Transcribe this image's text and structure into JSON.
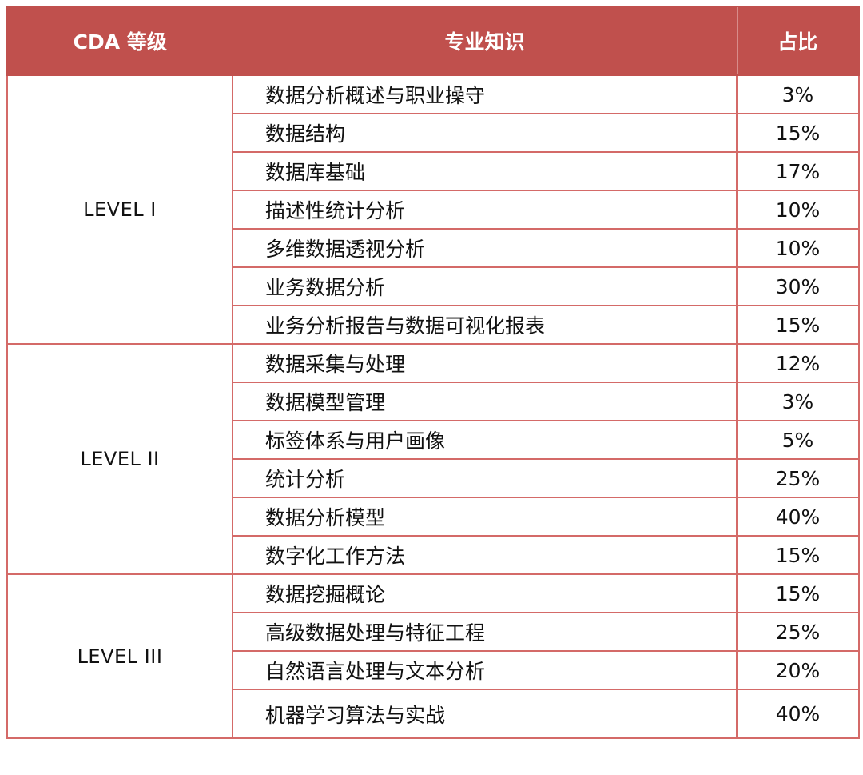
{
  "header": {
    "col_level": "CDA 等级",
    "col_knowledge": "专业知识",
    "col_ratio": "占比"
  },
  "colors": {
    "header_bg": "#c0504d",
    "border": "#d46a68",
    "header_text": "#ffffff"
  },
  "levels": [
    {
      "name": "LEVEL I",
      "rows": [
        {
          "knowledge": "数据分析概述与职业操守",
          "ratio": "3%"
        },
        {
          "knowledge": "数据结构",
          "ratio": "15%"
        },
        {
          "knowledge": "数据库基础",
          "ratio": "17%"
        },
        {
          "knowledge": "描述性统计分析",
          "ratio": "10%"
        },
        {
          "knowledge": "多维数据透视分析",
          "ratio": "10%"
        },
        {
          "knowledge": "业务数据分析",
          "ratio": "30%"
        },
        {
          "knowledge": "业务分析报告与数据可视化报表",
          "ratio": "15%"
        }
      ]
    },
    {
      "name": "LEVEL II",
      "rows": [
        {
          "knowledge": "数据采集与处理",
          "ratio": "12%"
        },
        {
          "knowledge": "数据模型管理",
          "ratio": "3%"
        },
        {
          "knowledge": "标签体系与用户画像",
          "ratio": "5%"
        },
        {
          "knowledge": "统计分析",
          "ratio": "25%"
        },
        {
          "knowledge": "数据分析模型",
          "ratio": "40%"
        },
        {
          "knowledge": "数字化工作方法",
          "ratio": "15%"
        }
      ]
    },
    {
      "name": "LEVEL III",
      "rows": [
        {
          "knowledge": "数据挖掘概论",
          "ratio": "15%"
        },
        {
          "knowledge": "高级数据处理与特征工程",
          "ratio": "25%"
        },
        {
          "knowledge": "自然语言处理与文本分析",
          "ratio": "20%"
        },
        {
          "knowledge": "机器学习算法与实战",
          "ratio": "40%"
        }
      ]
    }
  ]
}
